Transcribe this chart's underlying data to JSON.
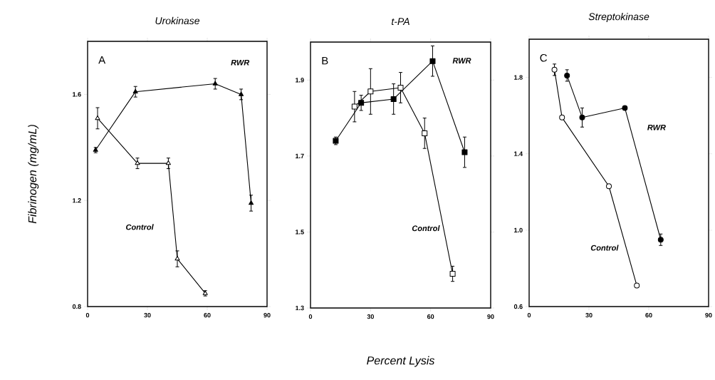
{
  "chart_data": [
    {
      "type": "line",
      "title": "Urokinase",
      "ylabel": "Fibrinogen (mg/mL)",
      "annotations": [
        "A"
      ],
      "marker": "triangle",
      "xlim": [
        0,
        90
      ],
      "xticks": [
        0,
        30,
        60,
        90
      ],
      "ylim": [
        0.8,
        1.8
      ],
      "yticks": [
        0.8,
        1.2,
        1.6
      ],
      "series": [
        {
          "name": "RWR",
          "color": "#000000",
          "x": [
            4,
            24,
            64,
            77,
            82
          ],
          "values": [
            1.39,
            1.61,
            1.64,
            1.6,
            1.19
          ],
          "errors": [
            0.01,
            0.02,
            0.02,
            0.02,
            0.03
          ]
        },
        {
          "name": "Control",
          "color": "#ffffff",
          "x": [
            5,
            25,
            40.5,
            45,
            59
          ],
          "values": [
            1.51,
            1.34,
            1.34,
            0.98,
            0.85
          ],
          "errors": [
            0.04,
            0.02,
            0.02,
            0.03,
            0.01
          ]
        }
      ]
    },
    {
      "type": "line",
      "title": "t-PA",
      "xlabel": "Percent Lysis",
      "annotations": [
        "B"
      ],
      "marker": "square",
      "xlim": [
        0,
        90
      ],
      "xticks": [
        0,
        30,
        60,
        90
      ],
      "ylim": [
        1.3,
        2.0
      ],
      "yticks": [
        1.3,
        1.5,
        1.7,
        1.9
      ],
      "series": [
        {
          "name": "RWR",
          "color": "#000000",
          "x": [
            12.6,
            25.3,
            41.5,
            61,
            77
          ],
          "values": [
            1.74,
            1.84,
            1.85,
            1.95,
            1.71
          ],
          "errors": [
            0.01,
            0.02,
            0.04,
            0.04,
            0.04
          ]
        },
        {
          "name": "Control",
          "color": "#ffffff",
          "x": [
            22,
            30,
            45,
            57,
            71
          ],
          "values": [
            1.83,
            1.87,
            1.88,
            1.76,
            1.39
          ],
          "errors": [
            0.04,
            0.06,
            0.04,
            0.04,
            0.02
          ]
        }
      ]
    },
    {
      "type": "line",
      "title": "Streptokinase",
      "annotations": [
        "C"
      ],
      "marker": "circle",
      "xlim": [
        0,
        90
      ],
      "xticks": [
        0,
        30,
        60,
        90
      ],
      "ylim": [
        0.6,
        2.0
      ],
      "yticks": [
        0.6,
        {
          "value": 1.0,
          "label": "1.0"
        },
        1.4,
        1.8
      ],
      "series": [
        {
          "name": "RWR",
          "color": "#000000",
          "x": [
            19,
            26.6,
            48,
            66
          ],
          "values": [
            1.81,
            1.59,
            1.64,
            0.95
          ],
          "errors": [
            0.03,
            0.05,
            null,
            0.03
          ]
        },
        {
          "name": "Control",
          "color": "#ffffff",
          "x": [
            12.7,
            16.5,
            40,
            54
          ],
          "values": [
            1.84,
            1.59,
            1.23,
            0.71
          ],
          "errors": [
            0.03,
            null,
            null,
            null
          ]
        }
      ]
    }
  ]
}
